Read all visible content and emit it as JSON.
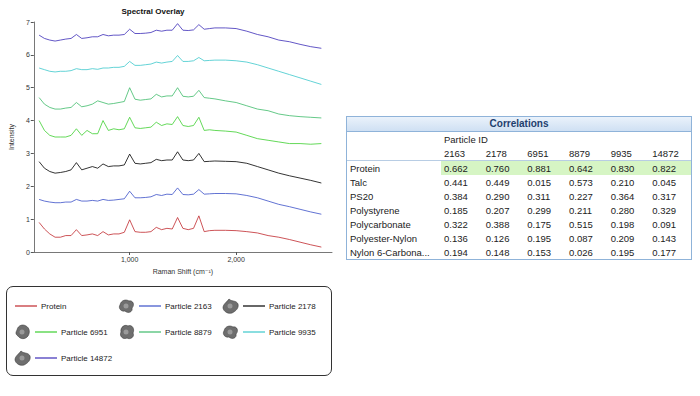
{
  "chart_data": {
    "type": "line",
    "title": "Spectral Overlay",
    "x_label": "Raman Shift (cm⁻¹)",
    "y_label": "Intensity",
    "xlim": [
      100,
      2900
    ],
    "xticks": [
      1000,
      2000
    ],
    "ylim": [
      0,
      7
    ],
    "yticks": [
      0,
      1,
      2,
      3,
      4,
      5,
      6,
      7
    ],
    "grid": false,
    "legend": "bottom",
    "x": [
      150,
      200,
      250,
      300,
      350,
      400,
      450,
      500,
      550,
      600,
      650,
      700,
      750,
      800,
      850,
      900,
      950,
      1000,
      1050,
      1100,
      1150,
      1200,
      1250,
      1300,
      1350,
      1400,
      1450,
      1500,
      1550,
      1600,
      1650,
      1700,
      1750,
      1800,
      1900,
      2000,
      2100,
      2200,
      2300,
      2400,
      2500,
      2600,
      2700,
      2800
    ],
    "series": [
      {
        "name": "Protein",
        "color": "#c0282d",
        "values": [
          0.9,
          0.7,
          0.55,
          0.45,
          0.45,
          0.5,
          0.5,
          0.68,
          0.5,
          0.52,
          0.55,
          0.5,
          0.62,
          0.52,
          0.55,
          0.55,
          0.6,
          0.98,
          0.62,
          0.6,
          0.6,
          0.62,
          0.75,
          0.68,
          0.72,
          0.7,
          1.05,
          0.72,
          0.68,
          0.72,
          1.1,
          0.62,
          0.65,
          0.66,
          0.66,
          0.65,
          0.62,
          0.58,
          0.5,
          0.45,
          0.38,
          0.3,
          0.22,
          0.15
        ]
      },
      {
        "name": "Particle 2163",
        "color": "#3a4fc8",
        "values": [
          1.6,
          1.55,
          1.52,
          1.5,
          1.5,
          1.52,
          1.52,
          1.6,
          1.55,
          1.55,
          1.57,
          1.55,
          1.6,
          1.57,
          1.58,
          1.6,
          1.62,
          1.85,
          1.65,
          1.65,
          1.66,
          1.68,
          1.75,
          1.72,
          1.76,
          1.75,
          1.95,
          1.75,
          1.74,
          1.76,
          1.9,
          1.76,
          1.77,
          1.78,
          1.78,
          1.77,
          1.72,
          1.65,
          1.55,
          1.45,
          1.38,
          1.3,
          1.22,
          1.15
        ]
      },
      {
        "name": "Particle 2178",
        "color": "#000000",
        "values": [
          2.75,
          2.55,
          2.45,
          2.4,
          2.42,
          2.45,
          2.5,
          2.72,
          2.5,
          2.55,
          2.6,
          2.55,
          2.68,
          2.6,
          2.62,
          2.62,
          2.65,
          2.98,
          2.7,
          2.68,
          2.7,
          2.72,
          2.82,
          2.78,
          2.8,
          2.8,
          3.05,
          2.8,
          2.78,
          2.8,
          3.0,
          2.75,
          2.76,
          2.77,
          2.76,
          2.75,
          2.7,
          2.6,
          2.5,
          2.4,
          2.32,
          2.25,
          2.18,
          2.1
        ]
      },
      {
        "name": "Particle 6951",
        "color": "#3ccf2f",
        "values": [
          4.0,
          3.7,
          3.55,
          3.5,
          3.5,
          3.5,
          3.55,
          3.75,
          3.55,
          3.7,
          3.6,
          3.6,
          4.0,
          3.7,
          3.75,
          3.72,
          3.75,
          4.1,
          3.78,
          3.76,
          3.78,
          3.8,
          3.95,
          3.85,
          3.9,
          3.88,
          4.12,
          3.85,
          3.82,
          3.85,
          4.1,
          3.7,
          3.72,
          3.7,
          3.68,
          3.65,
          3.55,
          3.45,
          3.4,
          3.35,
          3.3,
          3.3,
          3.28,
          3.3
        ]
      },
      {
        "name": "Particle 8879",
        "color": "#3dbb6a",
        "values": [
          4.7,
          4.5,
          4.4,
          4.35,
          4.35,
          4.38,
          4.4,
          4.55,
          4.42,
          4.45,
          4.5,
          4.6,
          4.55,
          4.5,
          4.52,
          4.55,
          4.58,
          5.0,
          4.65,
          4.62,
          4.64,
          4.66,
          4.8,
          4.72,
          4.75,
          4.75,
          5.0,
          4.74,
          4.72,
          4.74,
          4.92,
          4.7,
          4.68,
          4.66,
          4.6,
          4.55,
          4.45,
          4.35,
          4.3,
          4.2,
          4.15,
          4.12,
          4.1,
          4.08
        ]
      },
      {
        "name": "Particle 9935",
        "color": "#3cc8cc",
        "values": [
          5.6,
          5.55,
          5.5,
          5.48,
          5.5,
          5.5,
          5.52,
          5.58,
          5.55,
          5.55,
          5.58,
          5.56,
          5.6,
          5.6,
          5.62,
          5.62,
          5.65,
          5.8,
          5.68,
          5.68,
          5.7,
          5.72,
          5.78,
          5.75,
          5.78,
          5.8,
          5.98,
          5.8,
          5.8,
          5.82,
          5.92,
          5.82,
          5.83,
          5.84,
          5.84,
          5.82,
          5.78,
          5.7,
          5.6,
          5.5,
          5.4,
          5.3,
          5.2,
          5.1
        ]
      },
      {
        "name": "Particle 14872",
        "color": "#3b2cb8",
        "values": [
          6.6,
          6.5,
          6.45,
          6.42,
          6.45,
          6.48,
          6.5,
          6.62,
          6.5,
          6.52,
          6.55,
          6.55,
          6.62,
          6.58,
          6.6,
          6.6,
          6.62,
          6.78,
          6.65,
          6.65,
          6.66,
          6.68,
          6.75,
          6.72,
          6.75,
          6.75,
          6.95,
          6.75,
          6.74,
          6.76,
          6.92,
          6.78,
          6.8,
          6.82,
          6.82,
          6.8,
          6.72,
          6.62,
          6.55,
          6.45,
          6.4,
          6.32,
          6.25,
          6.2
        ]
      }
    ]
  },
  "table": {
    "title": "Correlations",
    "column_group": "Particle ID",
    "columns": [
      "2163",
      "2178",
      "6951",
      "8879",
      "9935",
      "14872"
    ],
    "rows": [
      {
        "label": "Protein",
        "cells": [
          "0.662",
          "0.760",
          "0.881",
          "0.642",
          "0.830",
          "0.822"
        ],
        "highlight": true
      },
      {
        "label": "Talc",
        "cells": [
          "0.441",
          "0.449",
          "0.015",
          "0.573",
          "0.210",
          "0.045"
        ]
      },
      {
        "label": "PS20",
        "cells": [
          "0.384",
          "0.290",
          "0.311",
          "0.227",
          "0.364",
          "0.317"
        ]
      },
      {
        "label": "Polystyrene",
        "cells": [
          "0.185",
          "0.207",
          "0.299",
          "0.211",
          "0.280",
          "0.329"
        ]
      },
      {
        "label": "Polycarbonate",
        "cells": [
          "0.322",
          "0.388",
          "0.175",
          "0.515",
          "0.198",
          "0.091"
        ]
      },
      {
        "label": "Polyester-Nylon",
        "cells": [
          "0.136",
          "0.126",
          "0.195",
          "0.087",
          "0.209",
          "0.143"
        ]
      },
      {
        "label": "Nylon 6-Carbona...",
        "cells": [
          "0.194",
          "0.148",
          "0.153",
          "0.026",
          "0.195",
          "0.177"
        ]
      }
    ]
  }
}
